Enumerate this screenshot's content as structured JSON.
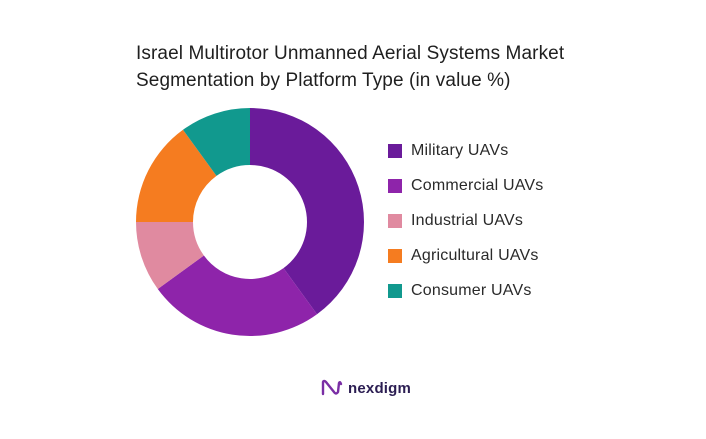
{
  "chart_data": {
    "type": "pie",
    "title": [
      "Israel Multirotor Unmanned Aerial Systems Market",
      "Segmentation by Platform Type (in value %)"
    ],
    "categories": [
      "Military UAVs",
      "Commercial UAVs",
      "Industrial UAVs",
      "Agricultural UAVs",
      "Consumer UAVs"
    ],
    "values": [
      40,
      25,
      10,
      15,
      10
    ],
    "colors": [
      "#6a1b9a",
      "#8e24aa",
      "#e08aa0",
      "#f57c20",
      "#11998e"
    ],
    "donut": true,
    "legend_position": "right"
  },
  "brand": {
    "name": "nexdigm",
    "mark_icon": "nexdigm-logo-icon",
    "mark_color": "#7a2ea5"
  }
}
